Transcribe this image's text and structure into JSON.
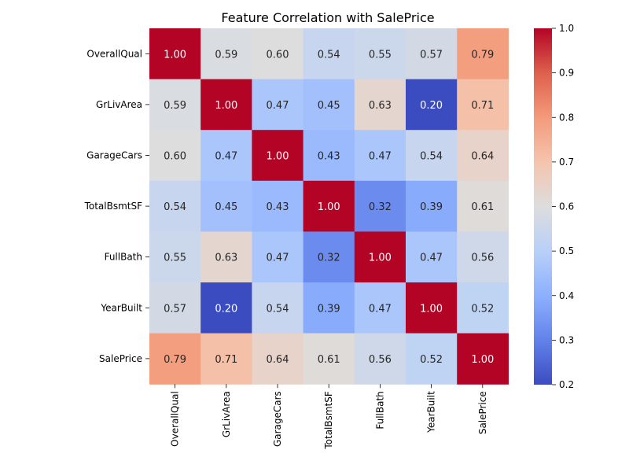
{
  "chart_data": {
    "type": "heatmap",
    "title": "Feature Correlation with SalePrice",
    "xlabel": "",
    "ylabel": "",
    "rows": [
      "OverallQual",
      "GrLivArea",
      "GarageCars",
      "TotalBsmtSF",
      "FullBath",
      "YearBuilt",
      "SalePrice"
    ],
    "columns": [
      "OverallQual",
      "GrLivArea",
      "GarageCars",
      "TotalBsmtSF",
      "FullBath",
      "YearBuilt",
      "SalePrice"
    ],
    "values": [
      [
        1.0,
        0.59,
        0.6,
        0.54,
        0.55,
        0.57,
        0.79
      ],
      [
        0.59,
        1.0,
        0.47,
        0.45,
        0.63,
        0.2,
        0.71
      ],
      [
        0.6,
        0.47,
        1.0,
        0.43,
        0.47,
        0.54,
        0.64
      ],
      [
        0.54,
        0.45,
        0.43,
        1.0,
        0.32,
        0.39,
        0.61
      ],
      [
        0.55,
        0.63,
        0.47,
        0.32,
        1.0,
        0.47,
        0.56
      ],
      [
        0.57,
        0.2,
        0.54,
        0.39,
        0.47,
        1.0,
        0.52
      ],
      [
        0.79,
        0.71,
        0.64,
        0.61,
        0.56,
        0.52,
        1.0
      ]
    ],
    "colormap": "coolwarm",
    "value_range": [
      0.2,
      1.0
    ],
    "colorbar_ticks": [
      "0.2",
      "0.3",
      "0.4",
      "0.5",
      "0.6",
      "0.7",
      "0.8",
      "0.9",
      "1.0"
    ],
    "annotation_format": "2 decimals"
  }
}
